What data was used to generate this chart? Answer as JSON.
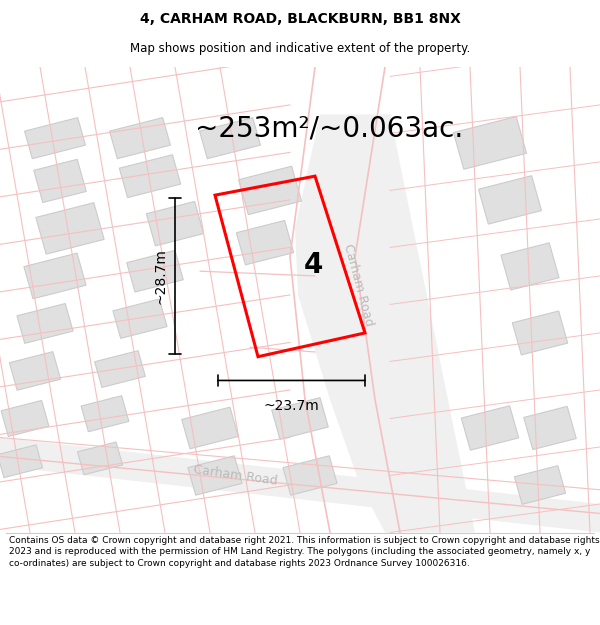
{
  "title": "4, CARHAM ROAD, BLACKBURN, BB1 8NX",
  "subtitle": "Map shows position and indicative extent of the property.",
  "area_text": "~253m²/~0.063ac.",
  "property_number": "4",
  "dim_width": "~23.7m",
  "dim_height": "~28.7m",
  "road_label_right": "Carham Road",
  "road_label_bottom": "Carham Road",
  "footer": "Contains OS data © Crown copyright and database right 2021. This information is subject to Crown copyright and database rights 2023 and is reproduced with the permission of HM Land Registry. The polygons (including the associated geometry, namely x, y co-ordinates) are subject to Crown copyright and database rights 2023 Ordnance Survey 100026316.",
  "plot_outline_color": "#ff0000",
  "road_line_color": "#f5c0c0",
  "building_color": "#e0e0e0",
  "building_edge_color": "#cccccc",
  "road_fill_color": "#efefef",
  "map_bg": "#ffffff",
  "title_fontsize": 10,
  "subtitle_fontsize": 8.5,
  "area_fontsize": 20,
  "property_num_fontsize": 20,
  "dim_fontsize": 10,
  "footer_fontsize": 6.5,
  "road_label_fontsize": 9,
  "road_label_color": "#bbbbbb"
}
